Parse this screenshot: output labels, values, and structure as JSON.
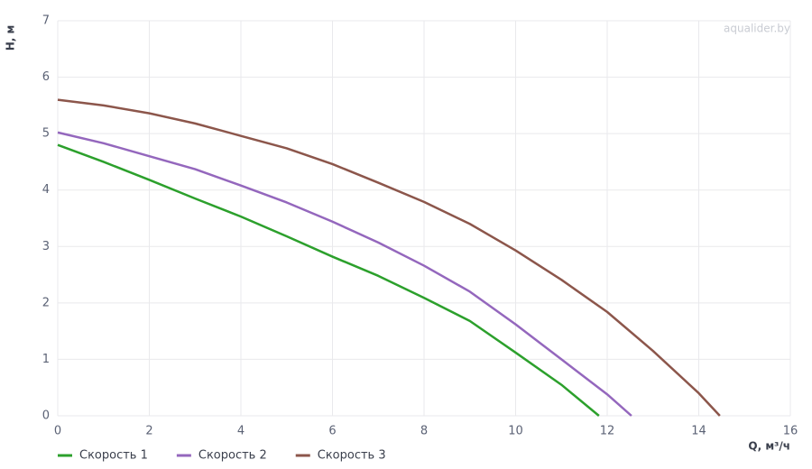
{
  "chart_data": {
    "type": "line",
    "watermark": "aqualider.by",
    "x_label": "Q, м³/ч",
    "y_label": "H, м",
    "xlim": [
      0,
      16
    ],
    "xticks": [
      0,
      2,
      4,
      6,
      8,
      10,
      12,
      14,
      16
    ],
    "ylim": [
      0,
      7
    ],
    "yticks": [
      0,
      1,
      2,
      3,
      4,
      5,
      6,
      7
    ],
    "grid": true,
    "legend": "bottom-left",
    "series": [
      {
        "name": "Скорость 1",
        "color": "#2ca02c",
        "x": [
          0,
          1,
          2,
          3,
          4,
          5,
          6,
          7,
          8,
          9,
          10,
          11,
          11.82
        ],
        "values": [
          4.8,
          4.5,
          4.18,
          3.85,
          3.53,
          3.18,
          2.82,
          2.48,
          2.09,
          1.68,
          1.12,
          0.55,
          0
        ]
      },
      {
        "name": "Скорость 2",
        "color": "#9467bd",
        "x": [
          0,
          1,
          2,
          3,
          4,
          5,
          6,
          7,
          8,
          9,
          10,
          11,
          12,
          12.53
        ],
        "values": [
          5.02,
          4.83,
          4.6,
          4.37,
          4.08,
          3.78,
          3.44,
          3.07,
          2.66,
          2.2,
          1.62,
          1.0,
          0.38,
          0
        ]
      },
      {
        "name": "Скорость 3",
        "color": "#8c564b",
        "x": [
          0,
          1,
          2,
          3,
          4,
          5,
          6,
          7,
          8,
          9,
          10,
          11,
          12,
          13,
          14,
          14.46
        ],
        "values": [
          5.6,
          5.5,
          5.36,
          5.18,
          4.96,
          4.74,
          4.46,
          4.13,
          3.79,
          3.4,
          2.93,
          2.41,
          1.84,
          1.15,
          0.4,
          0
        ]
      }
    ]
  }
}
